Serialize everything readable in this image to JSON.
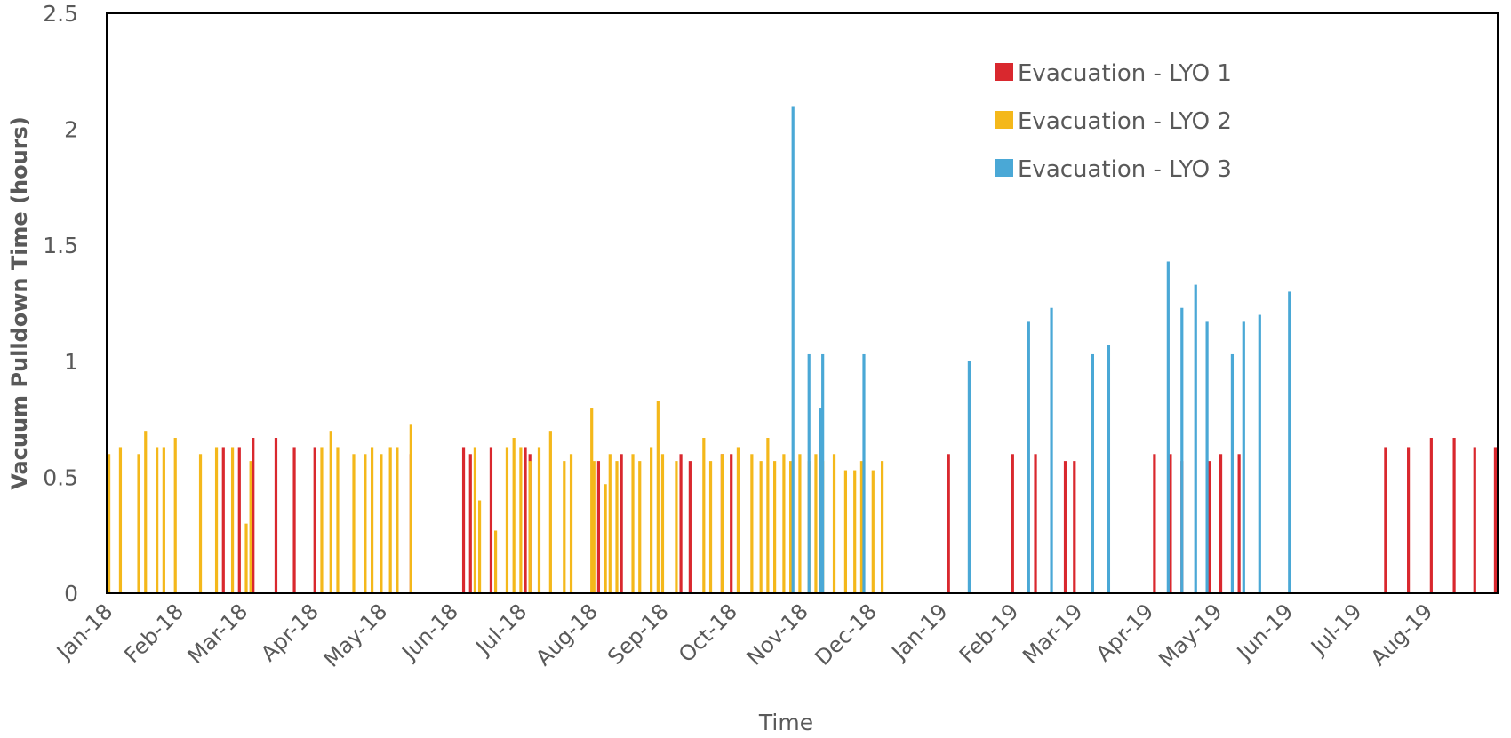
{
  "chart_data": {
    "type": "bar",
    "title": "",
    "xlabel": "Time",
    "ylabel": "Vacuum Pulldown Time (hours)",
    "ylim": [
      0,
      2.5
    ],
    "xlim": [
      "2018-01-01",
      "2019-09-01"
    ],
    "yticks": [
      "0",
      "0.5",
      "1",
      "1.5",
      "2",
      "2.5"
    ],
    "xticks": [
      {
        "label": "Jan-18",
        "date": "2018-01-01"
      },
      {
        "label": "Feb-18",
        "date": "2018-02-01"
      },
      {
        "label": "Mar-18",
        "date": "2018-03-01"
      },
      {
        "label": "Apr-18",
        "date": "2018-04-01"
      },
      {
        "label": "May-18",
        "date": "2018-05-01"
      },
      {
        "label": "Jun-18",
        "date": "2018-06-01"
      },
      {
        "label": "Jul-18",
        "date": "2018-07-01"
      },
      {
        "label": "Aug-18",
        "date": "2018-08-01"
      },
      {
        "label": "Sep-18",
        "date": "2018-09-01"
      },
      {
        "label": "Oct-18",
        "date": "2018-10-01"
      },
      {
        "label": "Nov-18",
        "date": "2018-11-01"
      },
      {
        "label": "Dec-18",
        "date": "2018-12-01"
      },
      {
        "label": "Jan-19",
        "date": "2019-01-01"
      },
      {
        "label": "Feb-19",
        "date": "2019-02-01"
      },
      {
        "label": "Mar-19",
        "date": "2019-03-01"
      },
      {
        "label": "Apr-19",
        "date": "2019-04-01"
      },
      {
        "label": "May-19",
        "date": "2019-05-01"
      },
      {
        "label": "Jun-19",
        "date": "2019-06-01"
      },
      {
        "label": "Jul-19",
        "date": "2019-07-01"
      },
      {
        "label": "Aug-19",
        "date": "2019-08-01"
      }
    ],
    "grid": false,
    "legend_position": "top-right",
    "series": [
      {
        "name": "Evacuation - LYO 1",
        "color": "#d9282e",
        "points": [
          [
            "2018-02-21",
            0.63
          ],
          [
            "2018-02-28",
            0.63
          ],
          [
            "2018-03-06",
            0.67
          ],
          [
            "2018-03-16",
            0.67
          ],
          [
            "2018-03-24",
            0.63
          ],
          [
            "2018-04-02",
            0.63
          ],
          [
            "2018-05-14",
            0.6
          ],
          [
            "2018-06-06",
            0.63
          ],
          [
            "2018-06-09",
            0.6
          ],
          [
            "2018-06-18",
            0.63
          ],
          [
            "2018-07-03",
            0.63
          ],
          [
            "2018-07-05",
            0.6
          ],
          [
            "2018-08-04",
            0.57
          ],
          [
            "2018-08-14",
            0.6
          ],
          [
            "2018-09-09",
            0.6
          ],
          [
            "2018-09-13",
            0.57
          ],
          [
            "2018-09-27",
            0.6
          ],
          [
            "2018-10-01",
            0.6
          ],
          [
            "2019-01-04",
            0.6
          ],
          [
            "2019-02-01",
            0.6
          ],
          [
            "2019-02-11",
            0.6
          ],
          [
            "2019-02-24",
            0.57
          ],
          [
            "2019-02-28",
            0.57
          ],
          [
            "2019-04-04",
            0.6
          ],
          [
            "2019-04-11",
            0.6
          ],
          [
            "2019-04-16",
            0.57
          ],
          [
            "2019-04-28",
            0.57
          ],
          [
            "2019-05-03",
            0.6
          ],
          [
            "2019-05-11",
            0.6
          ],
          [
            "2019-07-14",
            0.63
          ],
          [
            "2019-07-24",
            0.63
          ],
          [
            "2019-08-03",
            0.67
          ],
          [
            "2019-08-13",
            0.67
          ],
          [
            "2019-08-22",
            0.63
          ],
          [
            "2019-08-31",
            0.63
          ]
        ]
      },
      {
        "name": "Evacuation - LYO 2",
        "color": "#f4b81b",
        "points": [
          [
            "2018-01-02",
            0.6
          ],
          [
            "2018-01-07",
            0.63
          ],
          [
            "2018-01-15",
            0.6
          ],
          [
            "2018-01-18",
            0.7
          ],
          [
            "2018-01-23",
            0.63
          ],
          [
            "2018-01-26",
            0.63
          ],
          [
            "2018-01-31",
            0.67
          ],
          [
            "2018-02-11",
            0.6
          ],
          [
            "2018-02-18",
            0.63
          ],
          [
            "2018-02-25",
            0.63
          ],
          [
            "2018-03-03",
            0.3
          ],
          [
            "2018-03-05",
            0.57
          ],
          [
            "2018-04-05",
            0.63
          ],
          [
            "2018-04-09",
            0.7
          ],
          [
            "2018-04-12",
            0.63
          ],
          [
            "2018-04-19",
            0.6
          ],
          [
            "2018-04-24",
            0.6
          ],
          [
            "2018-04-27",
            0.63
          ],
          [
            "2018-05-01",
            0.6
          ],
          [
            "2018-05-05",
            0.63
          ],
          [
            "2018-05-08",
            0.63
          ],
          [
            "2018-05-14",
            0.73
          ],
          [
            "2018-06-11",
            0.63
          ],
          [
            "2018-06-13",
            0.4
          ],
          [
            "2018-06-20",
            0.27
          ],
          [
            "2018-06-25",
            0.63
          ],
          [
            "2018-06-28",
            0.67
          ],
          [
            "2018-07-01",
            0.63
          ],
          [
            "2018-07-05",
            0.57
          ],
          [
            "2018-07-09",
            0.63
          ],
          [
            "2018-07-14",
            0.7
          ],
          [
            "2018-07-20",
            0.57
          ],
          [
            "2018-07-23",
            0.6
          ],
          [
            "2018-08-01",
            0.8
          ],
          [
            "2018-08-02",
            0.57
          ],
          [
            "2018-08-07",
            0.47
          ],
          [
            "2018-08-09",
            0.6
          ],
          [
            "2018-08-12",
            0.57
          ],
          [
            "2018-08-19",
            0.6
          ],
          [
            "2018-08-22",
            0.57
          ],
          [
            "2018-08-27",
            0.63
          ],
          [
            "2018-08-30",
            0.83
          ],
          [
            "2018-09-01",
            0.6
          ],
          [
            "2018-09-07",
            0.57
          ],
          [
            "2018-09-19",
            0.67
          ],
          [
            "2018-09-22",
            0.57
          ],
          [
            "2018-09-27",
            0.6
          ],
          [
            "2018-10-04",
            0.63
          ],
          [
            "2018-10-10",
            0.6
          ],
          [
            "2018-10-14",
            0.57
          ],
          [
            "2018-10-17",
            0.67
          ],
          [
            "2018-10-20",
            0.57
          ],
          [
            "2018-10-24",
            0.6
          ],
          [
            "2018-10-27",
            0.57
          ],
          [
            "2018-10-31",
            0.6
          ],
          [
            "2018-11-04",
            0.57
          ],
          [
            "2018-11-07",
            0.6
          ],
          [
            "2018-11-10",
            0.57
          ],
          [
            "2018-11-15",
            0.6
          ],
          [
            "2018-11-20",
            0.53
          ],
          [
            "2018-11-24",
            0.53
          ],
          [
            "2018-11-27",
            0.57
          ],
          [
            "2018-12-02",
            0.53
          ],
          [
            "2018-12-06",
            0.57
          ]
        ]
      },
      {
        "name": "Evacuation - LYO 3",
        "color": "#4aa8d6",
        "points": [
          [
            "2018-10-28",
            2.1
          ],
          [
            "2018-11-04",
            1.03
          ],
          [
            "2018-11-09",
            0.8
          ],
          [
            "2018-11-10",
            1.03
          ],
          [
            "2018-11-28",
            1.03
          ],
          [
            "2019-01-13",
            1.0
          ],
          [
            "2019-02-08",
            1.17
          ],
          [
            "2019-02-18",
            1.23
          ],
          [
            "2019-03-08",
            1.03
          ],
          [
            "2019-03-15",
            1.07
          ],
          [
            "2019-04-10",
            1.43
          ],
          [
            "2019-04-16",
            1.23
          ],
          [
            "2019-04-22",
            1.33
          ],
          [
            "2019-04-27",
            1.17
          ],
          [
            "2019-05-08",
            1.03
          ],
          [
            "2019-05-13",
            1.17
          ],
          [
            "2019-05-20",
            1.2
          ],
          [
            "2019-06-02",
            1.3
          ]
        ]
      }
    ]
  }
}
